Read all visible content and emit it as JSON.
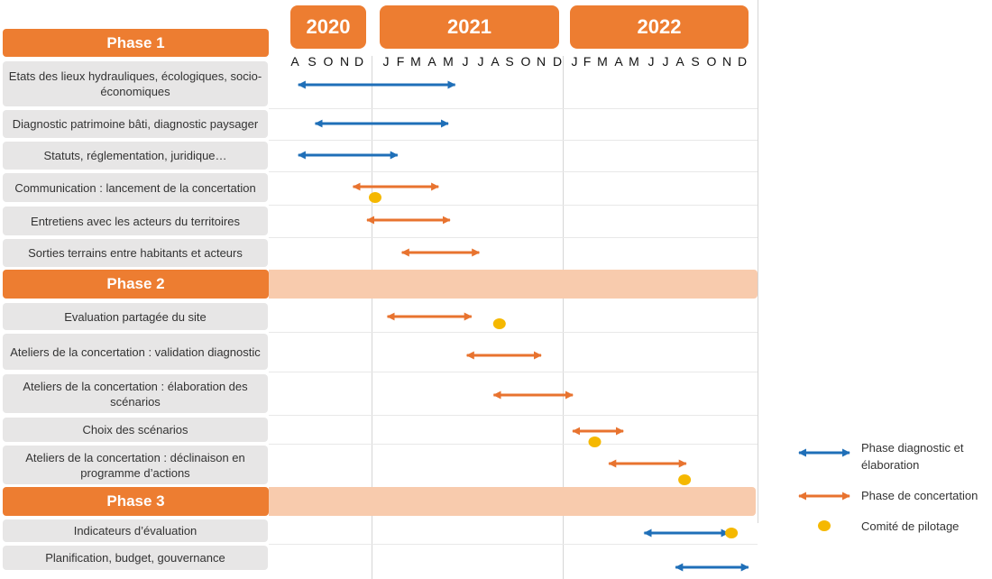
{
  "timeline": {
    "years": [
      {
        "label": "2020"
      },
      {
        "label": "2021"
      },
      {
        "label": "2022"
      }
    ],
    "months": [
      "A",
      "S",
      "O",
      "N",
      "D",
      "J",
      "F",
      "M",
      "A",
      "M",
      "J",
      "J",
      "A",
      "S",
      "O",
      "N",
      "D",
      "J",
      "F",
      "M",
      "A",
      "M",
      "J",
      "J",
      "A",
      "S",
      "O",
      "N",
      "D"
    ]
  },
  "phases": [
    {
      "label": "Phase 1",
      "band": false,
      "tasks": [
        {
          "label": "Etats des lieux hydrauliques, écologiques, socio-économiques",
          "type": "diagnostic",
          "start": 0.2,
          "end": 9.4
        },
        {
          "label": "Diagnostic patrimoine bâti, diagnostic paysager",
          "type": "diagnostic",
          "start": 1.2,
          "end": 9.0
        },
        {
          "label": "Statuts, réglementation, juridique…",
          "type": "diagnostic",
          "start": 0.2,
          "end": 5.8
        },
        {
          "label": "Communication : lancement de la concertation",
          "type": "concertation",
          "start": 3.6,
          "end": 8.4,
          "copil": 4.6
        },
        {
          "label": "Entretiens avec les acteurs du territoires",
          "type": "concertation",
          "start": 4.3,
          "end": 9.1
        },
        {
          "label": "Sorties terrains entre habitants et acteurs",
          "type": "concertation",
          "start": 6.1,
          "end": 10.9
        }
      ]
    },
    {
      "label": "Phase 2",
      "band": true,
      "tasks": [
        {
          "label": "Evaluation partagée du site",
          "type": "concertation",
          "start": 5.1,
          "end": 10.4,
          "copil": 12.3
        },
        {
          "label": "Ateliers de la concertation : validation diagnostic",
          "type": "concertation",
          "start": 10.1,
          "end": 15.0
        },
        {
          "label": "Ateliers de la concertation : élaboration  des scénarios",
          "type": "concertation",
          "start": 11.9,
          "end": 16.9
        },
        {
          "label": "Choix des scénarios",
          "type": "concertation",
          "start": 16.9,
          "end": 20.3,
          "copil": 18.5
        },
        {
          "label": "Ateliers de la concertation : déclinaison en programme d’actions",
          "type": "concertation",
          "start": 19.4,
          "end": 24.4,
          "copil": 24.3
        }
      ]
    },
    {
      "label": "Phase 3",
      "band": true,
      "tasks": [
        {
          "label": "Indicateurs d’évaluation",
          "type": "diagnostic",
          "start": 21.6,
          "end": 27.1,
          "copil": 27.3
        },
        {
          "label": "Planification, budget, gouvernance",
          "type": "diagnostic",
          "start": 23.7,
          "end": 28.4
        }
      ]
    }
  ],
  "legend": [
    {
      "type": "diagnostic",
      "label": "Phase diagnostic et élaboration"
    },
    {
      "type": "concertation",
      "label": "Phase de concertation"
    },
    {
      "type": "copil",
      "label": "Comité de pilotage"
    }
  ],
  "colors": {
    "orange": "#ED7D31",
    "band": "#F8CBAD",
    "diagnostic": "#1F6FB8",
    "concertation": "#E8732F",
    "copil": "#F5B800",
    "task_bg": "#E7E6E6"
  }
}
